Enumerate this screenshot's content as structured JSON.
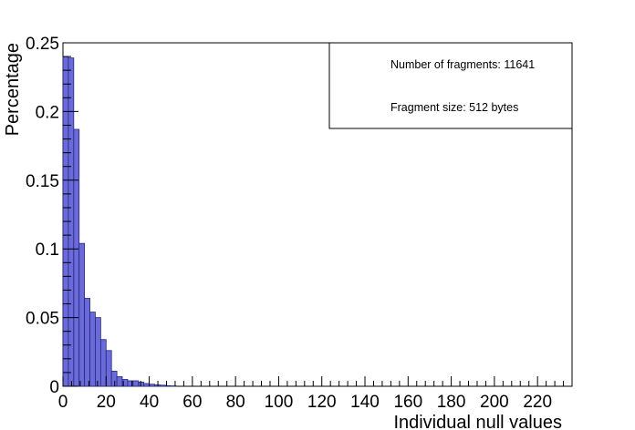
{
  "chart_data": {
    "type": "bar",
    "xlabel": "Individual null values",
    "ylabel": "Percentage",
    "xlim": [
      0,
      236
    ],
    "ylim": [
      0,
      0.25
    ],
    "xticks": [
      0,
      20,
      40,
      60,
      80,
      100,
      120,
      140,
      160,
      180,
      200,
      220
    ],
    "yticks": [
      0,
      0.05,
      0.1,
      0.15,
      0.2,
      0.25
    ],
    "ytick_labels": [
      "0",
      "0.05",
      "0.1",
      "0.15",
      "0.2",
      "0.25"
    ],
    "bin_width": 2.5,
    "bins": [
      {
        "x": 0,
        "value": 0.24
      },
      {
        "x": 2.5,
        "value": 0.239
      },
      {
        "x": 5,
        "value": 0.187
      },
      {
        "x": 7.5,
        "value": 0.104
      },
      {
        "x": 10,
        "value": 0.064
      },
      {
        "x": 12.5,
        "value": 0.054
      },
      {
        "x": 15,
        "value": 0.05
      },
      {
        "x": 17.5,
        "value": 0.034
      },
      {
        "x": 20,
        "value": 0.026
      },
      {
        "x": 22.5,
        "value": 0.011
      },
      {
        "x": 25,
        "value": 0.007
      },
      {
        "x": 27.5,
        "value": 0.005
      },
      {
        "x": 30,
        "value": 0.004
      },
      {
        "x": 32.5,
        "value": 0.004
      },
      {
        "x": 35,
        "value": 0.003
      },
      {
        "x": 37.5,
        "value": 0.002
      },
      {
        "x": 40,
        "value": 0.0015
      },
      {
        "x": 42.5,
        "value": 0.001
      },
      {
        "x": 45,
        "value": 0.0008
      },
      {
        "x": 47.5,
        "value": 0.0004
      },
      {
        "x": 50,
        "value": 0.0003
      }
    ],
    "legend": {
      "placement": "top-right",
      "lines": [
        "Number of fragments: 11641",
        "Fragment size: 512 bytes"
      ]
    },
    "colors": {
      "bar_fill": "#6a6ad8",
      "bar_stroke": "#262680",
      "axis": "#000000"
    }
  }
}
